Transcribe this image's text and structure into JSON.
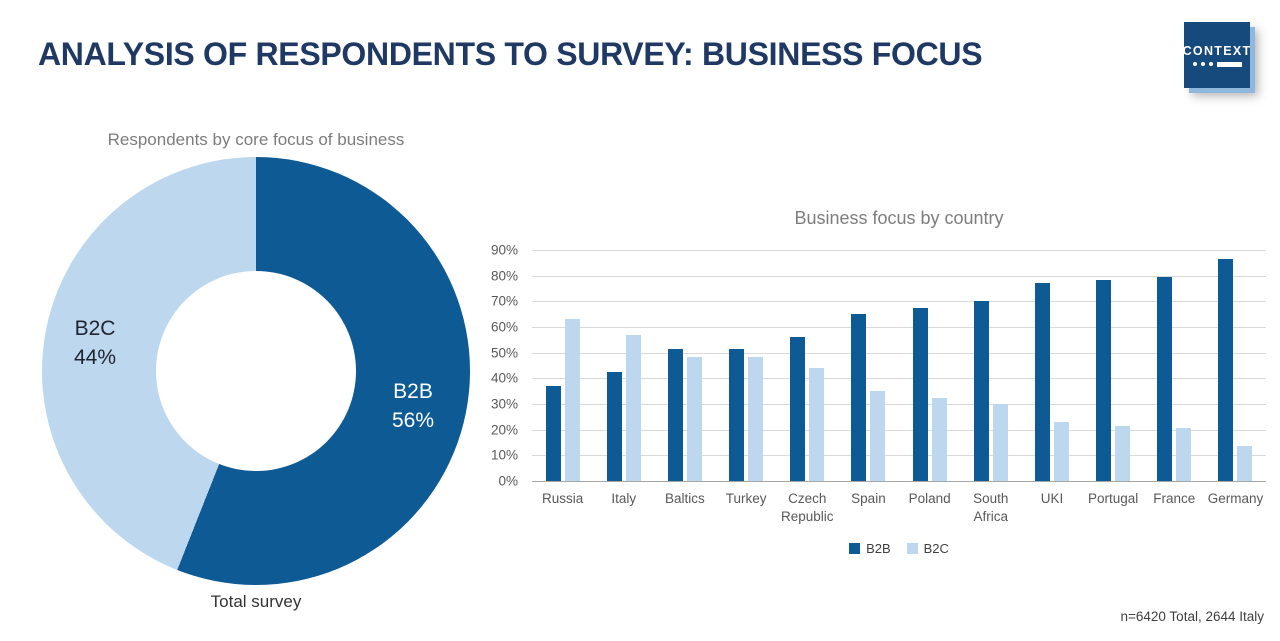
{
  "header": {
    "title": "ANALYSIS OF RESPONDENTS TO SURVEY: BUSINESS FOCUS",
    "logo_text": "CONTEXT"
  },
  "footnote": "n=6420 Total, 2644 Italy",
  "colors": {
    "b2b_dark_blue": "#0d5a95",
    "b2c_light_blue": "#bdd7ee",
    "heading_navy": "#1f3864",
    "logo_navy": "#174a7c",
    "logo_shadow_blue": "#8fb8dc",
    "chart_title_gray": "#7d7d7d",
    "axis_text_gray": "#595959",
    "gridline_gray": "#d9d9d9"
  },
  "chart_data": [
    {
      "type": "pie",
      "subtype": "donut",
      "title": "Respondents by core focus of business",
      "caption": "Total survey",
      "start_angle_deg": 0,
      "direction": "clockwise",
      "slices": [
        {
          "label": "B2B",
          "value_pct": 56,
          "pct_text": "56%",
          "color": "#0d5a95",
          "label_color": "#ffffff"
        },
        {
          "label": "B2C",
          "value_pct": 44,
          "pct_text": "44%",
          "color": "#bdd7ee",
          "label_color": "#1f2430"
        }
      ]
    },
    {
      "type": "bar",
      "title": "Business focus by country",
      "categories": [
        "Russia",
        "Italy",
        "Baltics",
        "Turkey",
        "Czech Republic",
        "Spain",
        "Poland",
        "South Africa",
        "UKI",
        "Portugal",
        "France",
        "Germany"
      ],
      "series": [
        {
          "name": "B2B",
          "color": "#0d5a95",
          "values": [
            37,
            42.5,
            51.5,
            51.5,
            56,
            65,
            67.5,
            70,
            77,
            78.5,
            79.5,
            86.5
          ]
        },
        {
          "name": "B2C",
          "color": "#bdd7ee",
          "values": [
            63,
            57,
            48.5,
            48.5,
            44,
            35,
            32.5,
            30,
            23,
            21.5,
            20.5,
            13.5
          ]
        }
      ],
      "ylabel": "",
      "xlabel": "",
      "ylim": [
        0,
        90
      ],
      "ytick_step": 10,
      "ytick_labels": [
        "0%",
        "10%",
        "20%",
        "30%",
        "40%",
        "50%",
        "60%",
        "70%",
        "80%",
        "90%"
      ],
      "grid": true,
      "legend_position": "bottom"
    }
  ]
}
